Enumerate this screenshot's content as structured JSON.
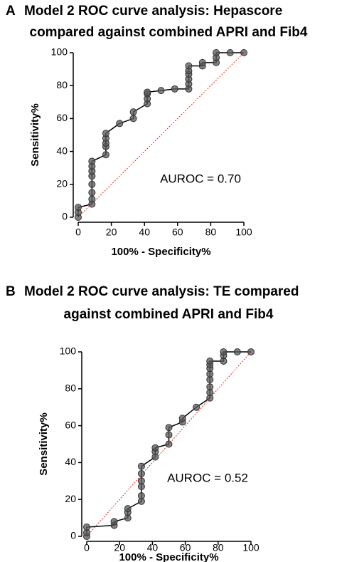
{
  "chart_data": [
    {
      "type": "line",
      "panel": "A",
      "title": [
        "Model 2 ROC curve analysis: Hepascore",
        "compared against combined APRI and Fib4"
      ],
      "x_label": "100% - Specificity%",
      "y_label": "Sensitivity%",
      "annotation": "AUROC = 0.70",
      "x": [
        0,
        0,
        0,
        8.3,
        8.3,
        8.3,
        8.3,
        8.3,
        8.3,
        8.3,
        8.3,
        16.7,
        16.7,
        16.7,
        16.7,
        16.7,
        25,
        33.3,
        33.3,
        41.7,
        41.7,
        41.7,
        41.7,
        50,
        58.3,
        66.7,
        66.7,
        66.7,
        66.7,
        66.7,
        66.7,
        75,
        75,
        83.3,
        83.3,
        83.3,
        91.7,
        100
      ],
      "values": [
        0,
        3,
        6,
        8,
        11,
        15,
        20,
        25,
        28,
        31,
        34,
        38,
        43,
        45,
        48,
        51,
        57,
        60,
        64,
        69,
        72,
        75,
        76,
        77,
        78,
        78,
        81,
        84,
        87,
        89,
        92,
        92,
        94,
        94,
        97,
        100,
        100,
        100
      ],
      "color": "#5a5a5a",
      "line_color": "#000000",
      "reference_color": "#e0301e",
      "xlim": [
        0,
        100
      ],
      "ylim": [
        0,
        100
      ],
      "xticks": [
        0,
        20,
        40,
        60,
        80,
        100
      ],
      "yticks": [
        0,
        20,
        40,
        60,
        80,
        100
      ]
    },
    {
      "type": "line",
      "panel": "B",
      "title": [
        "Model 2 ROC curve analysis: TE compared",
        "against combined APRI and Fib4"
      ],
      "x_label": "100% - Specificity%",
      "y_label": "Sensitivity%",
      "annotation": "AUROC = 0.52",
      "x": [
        0,
        0,
        0,
        16.7,
        16.7,
        25,
        25,
        25,
        33.3,
        33.3,
        33.3,
        33.3,
        33.3,
        33.3,
        41.7,
        41.7,
        41.7,
        50,
        50,
        50,
        58.3,
        58.3,
        66.7,
        75,
        75,
        75,
        75,
        75,
        75,
        75,
        75,
        83.3,
        83.3,
        83.3,
        91.7,
        100
      ],
      "values": [
        0,
        2,
        5,
        6,
        8,
        10,
        13,
        15,
        19,
        22,
        27,
        30,
        34,
        38,
        43,
        46,
        48,
        50,
        55,
        59,
        62,
        64,
        70,
        75,
        78,
        81,
        85,
        88,
        91,
        93,
        95,
        95,
        98,
        100,
        100,
        100
      ],
      "color": "#5a5a5a",
      "line_color": "#000000",
      "reference_color": "#e0301e",
      "xlim": [
        0,
        100
      ],
      "ylim": [
        0,
        100
      ],
      "xticks": [
        0,
        20,
        40,
        60,
        80,
        100
      ],
      "yticks": [
        0,
        20,
        40,
        60,
        80,
        100
      ]
    }
  ]
}
